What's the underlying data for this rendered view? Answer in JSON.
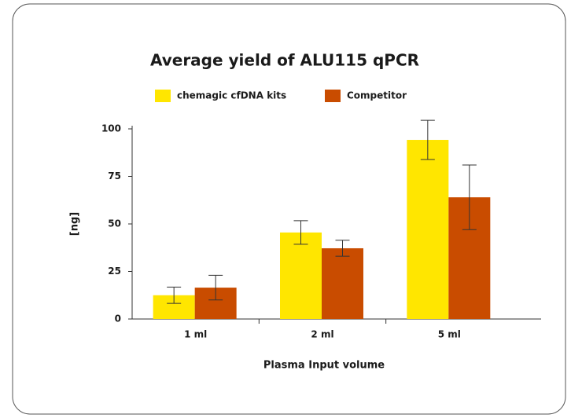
{
  "chart_data": {
    "type": "bar",
    "title": "Average yield of ALU115 qPCR",
    "x_label": "Plasma Input volume",
    "y_label": "[ng]",
    "categories": [
      "1 ml",
      "2 ml",
      "5 ml"
    ],
    "series": [
      {
        "name": "chemagic cfDNA kits",
        "color": "#ffe600",
        "values": [
          12.5,
          45.5,
          94.2
        ],
        "errors": [
          4.3,
          6.2,
          10.3
        ]
      },
      {
        "name": "Competitor",
        "color": "#c94c00",
        "values": [
          16.5,
          37.2,
          64
        ],
        "errors": [
          6.5,
          4.2,
          17
        ]
      }
    ],
    "ylim": [
      0,
      100
    ],
    "yticks": [
      0,
      25,
      50,
      75,
      100
    ]
  }
}
